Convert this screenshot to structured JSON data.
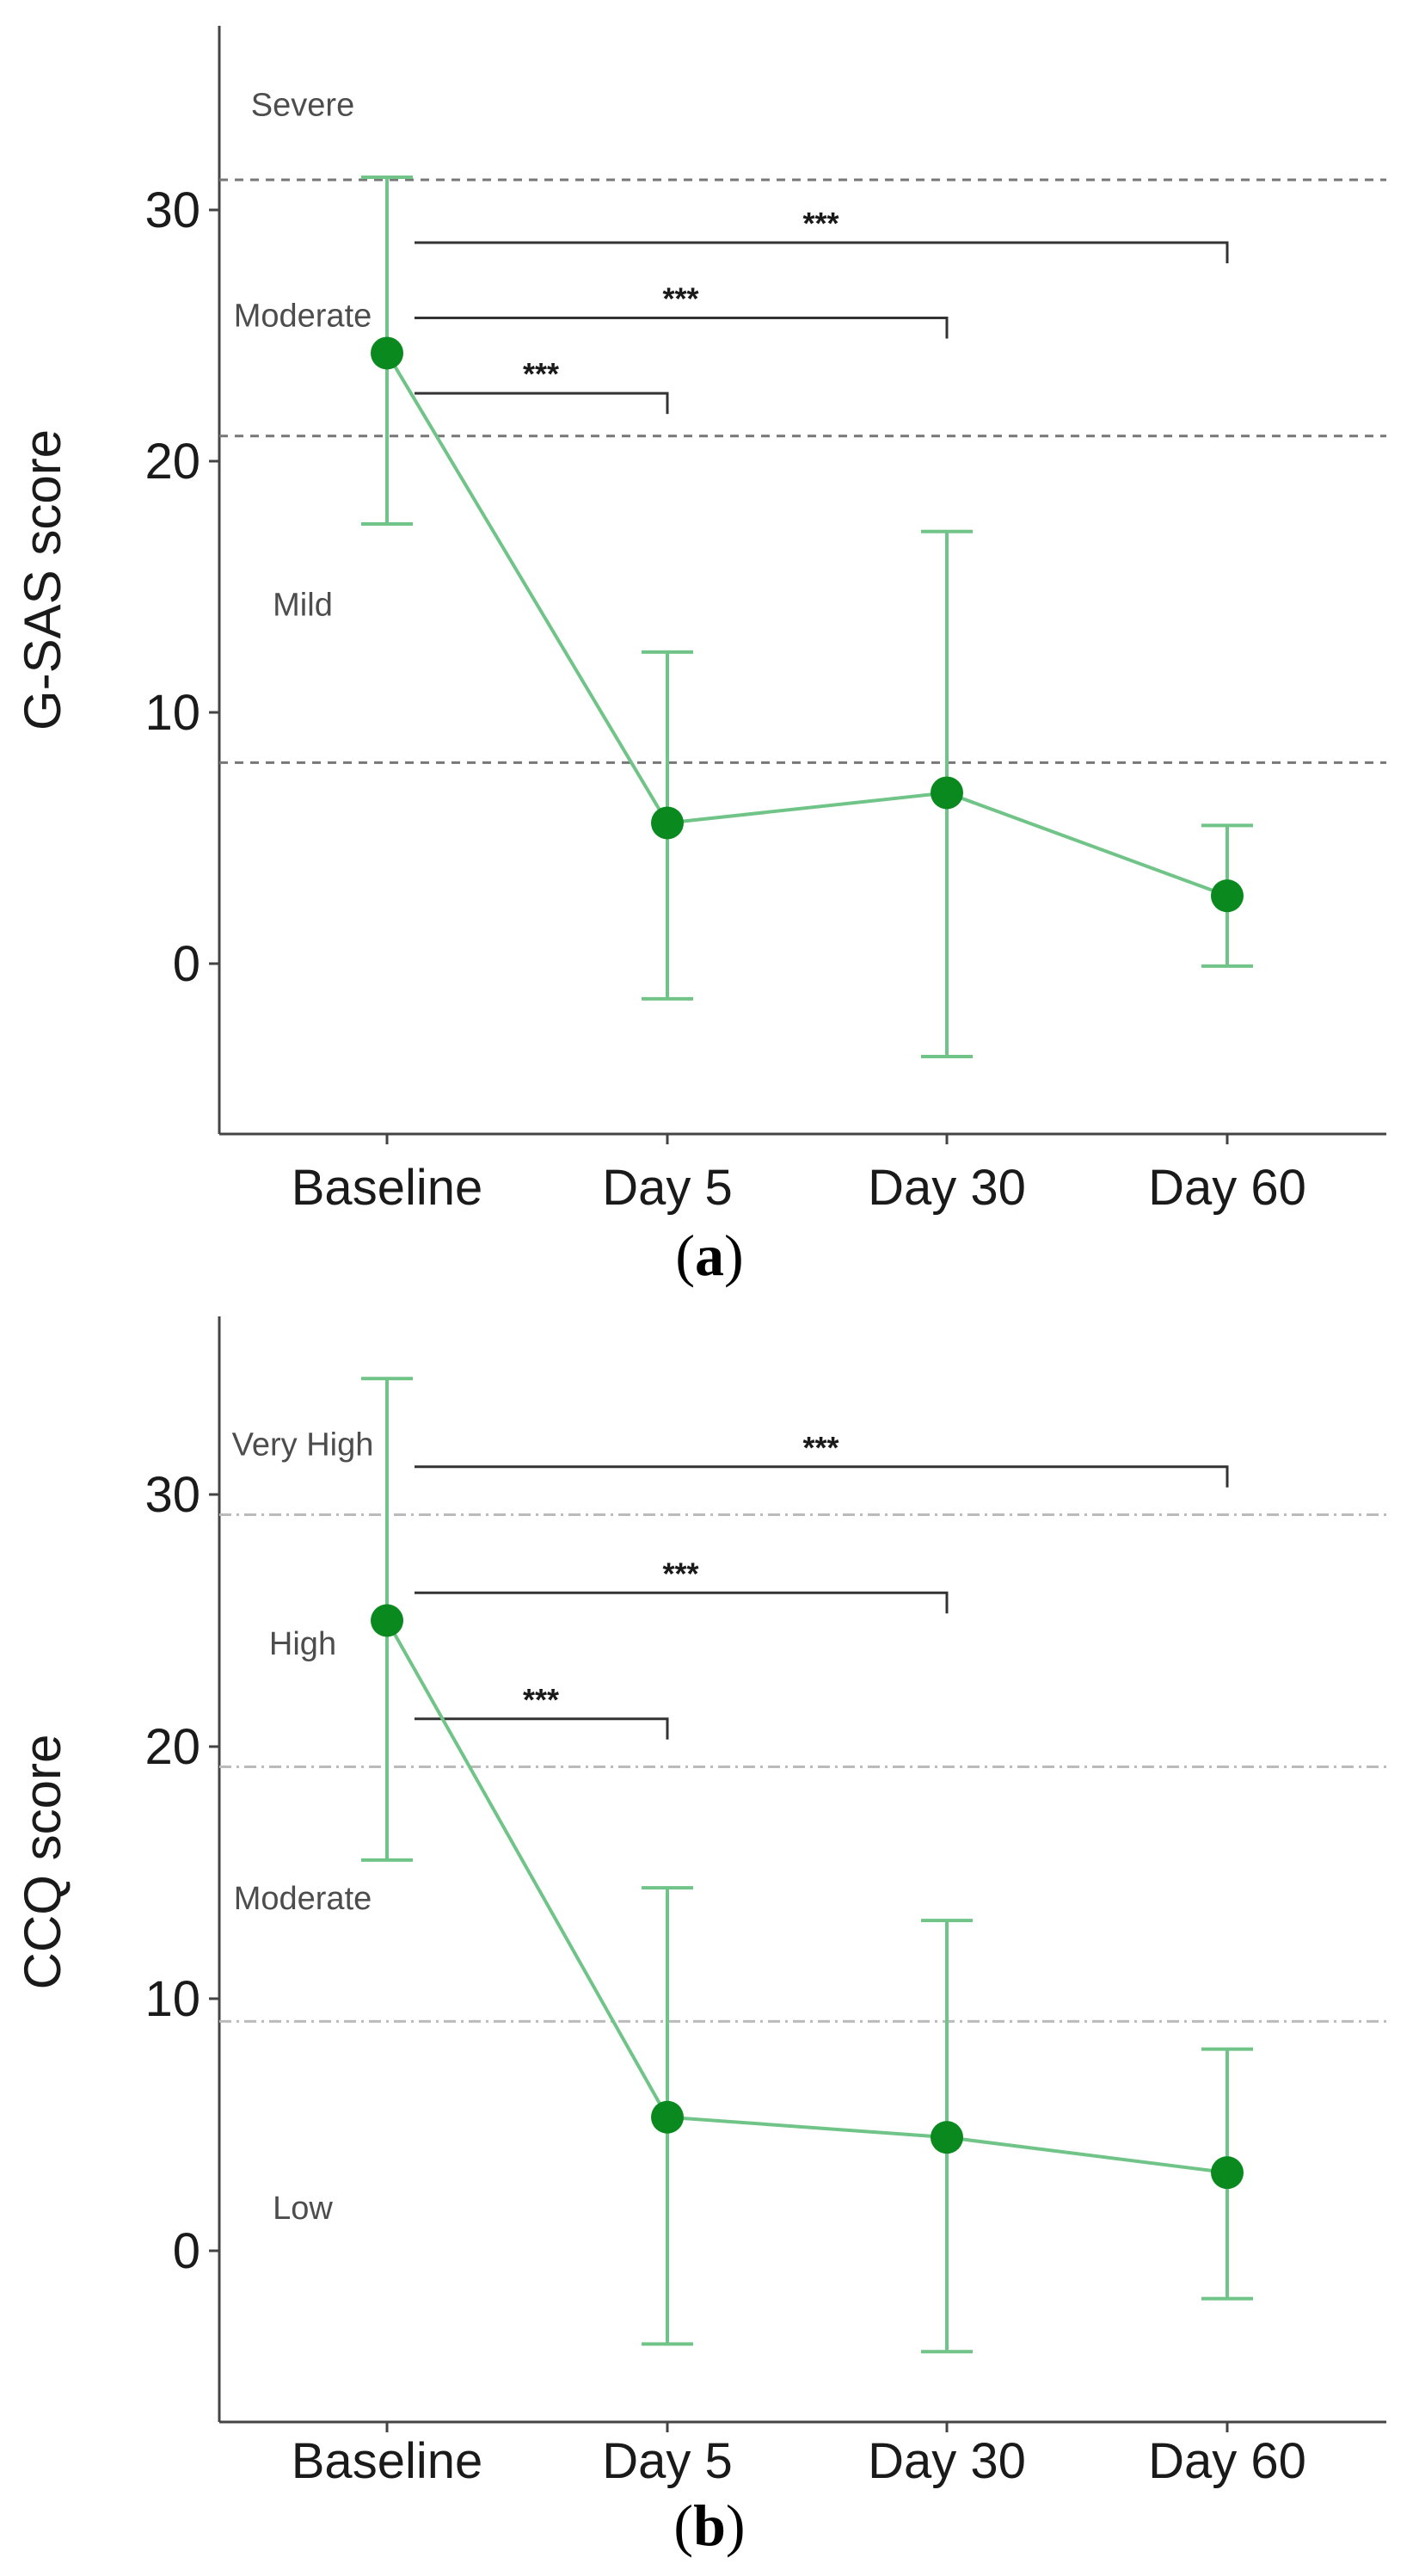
{
  "chart_data": [
    {
      "type": "line",
      "panel": "a",
      "ylabel": "G-SAS score",
      "xlabel": "",
      "categories": [
        "Baseline",
        "Day 5",
        "Day 30",
        "Day 60"
      ],
      "ylim": [
        -7,
        37
      ],
      "yticks": [
        "0",
        "10",
        "20",
        "30"
      ],
      "ytick_values": [
        0,
        10,
        20,
        30
      ],
      "grid": false,
      "series": [
        {
          "name": "G-SAS",
          "color": "#70c487",
          "marker_color": "#0a8a1e",
          "values": [
            24.3,
            5.6,
            6.8,
            2.7
          ],
          "err_low": [
            17.5,
            -1.4,
            -3.7,
            -0.1
          ],
          "err_high": [
            31.3,
            12.4,
            17.2,
            5.5
          ]
        }
      ],
      "thresholds": [
        {
          "value": 31.2,
          "style": "dashed"
        },
        {
          "value": 21.0,
          "style": "dashed"
        },
        {
          "value": 8.0,
          "style": "dashed"
        }
      ],
      "band_labels": [
        {
          "text": "Severe",
          "value": 34.2
        },
        {
          "text": "Moderate",
          "value": 25.8
        },
        {
          "text": "Mild",
          "value": 14.3
        }
      ],
      "significance": [
        {
          "from": "Baseline",
          "to": "Day 5",
          "label": "***",
          "y": 22.7
        },
        {
          "from": "Baseline",
          "to": "Day 30",
          "label": "***",
          "y": 25.7
        },
        {
          "from": "Baseline",
          "to": "Day 60",
          "label": "***",
          "y": 28.7
        }
      ]
    },
    {
      "type": "line",
      "panel": "b",
      "ylabel": "CCQ score",
      "xlabel": "",
      "categories": [
        "Baseline",
        "Day 5",
        "Day 30",
        "Day 60"
      ],
      "ylim": [
        -7,
        37
      ],
      "yticks": [
        "0",
        "10",
        "20",
        "30"
      ],
      "ytick_values": [
        0,
        10,
        20,
        30
      ],
      "grid": false,
      "series": [
        {
          "name": "CCQ",
          "color": "#70c487",
          "marker_color": "#0a8a1e",
          "values": [
            25.0,
            5.3,
            4.5,
            3.1
          ],
          "err_low": [
            15.5,
            -3.7,
            -4.0,
            -1.9
          ],
          "err_high": [
            34.6,
            14.4,
            13.1,
            8.0
          ]
        }
      ],
      "thresholds": [
        {
          "value": 29.2,
          "style": "dashdot"
        },
        {
          "value": 19.2,
          "style": "dashdot"
        },
        {
          "value": 9.1,
          "style": "dashdot"
        }
      ],
      "band_labels": [
        {
          "text": "Very High",
          "value": 32.0
        },
        {
          "text": "High",
          "value": 24.1
        },
        {
          "text": "Moderate",
          "value": 14.0
        },
        {
          "text": "Low",
          "value": 1.7
        }
      ],
      "significance": [
        {
          "from": "Baseline",
          "to": "Day 5",
          "label": "***",
          "y": 21.1
        },
        {
          "from": "Baseline",
          "to": "Day 30",
          "label": "***",
          "y": 26.1
        },
        {
          "from": "Baseline",
          "to": "Day 60",
          "label": "***",
          "y": 31.1
        }
      ]
    }
  ],
  "captions": [
    "(a)",
    "(b)"
  ]
}
